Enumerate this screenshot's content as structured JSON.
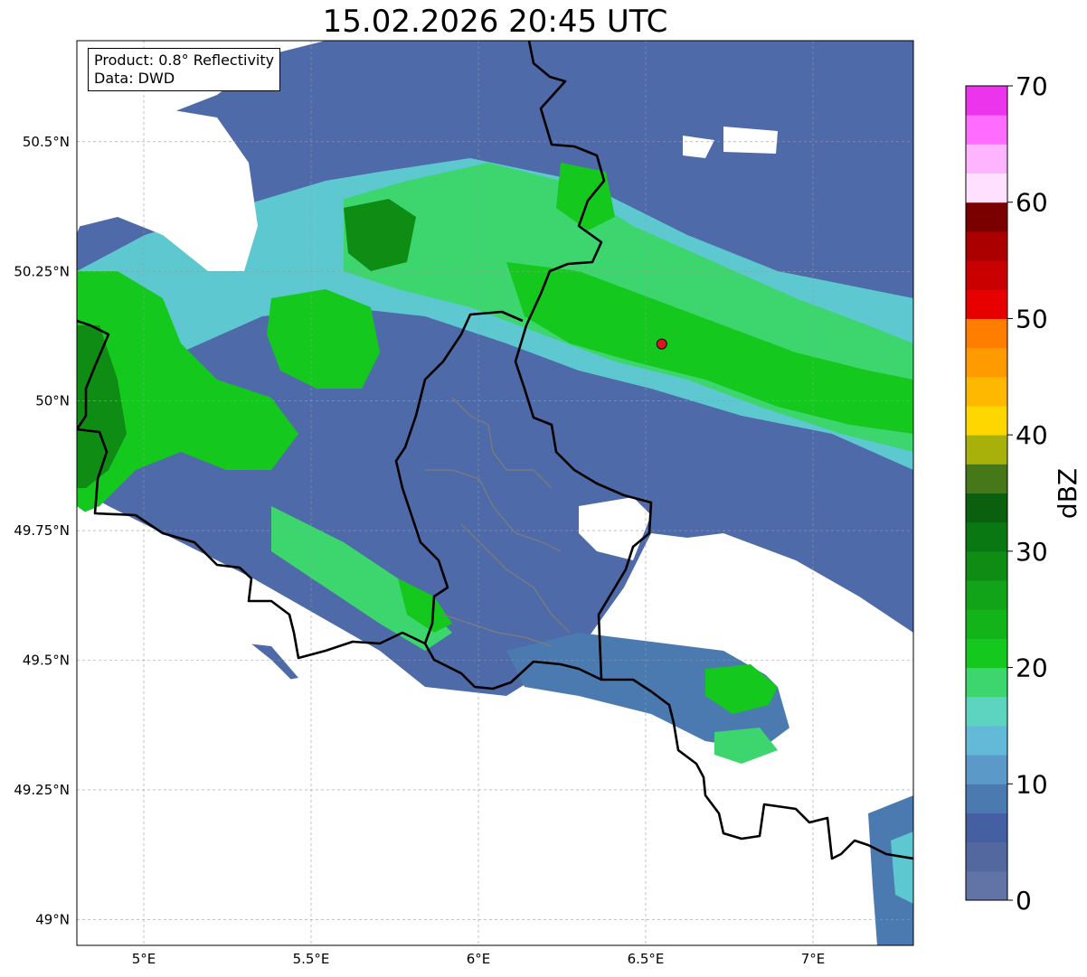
{
  "title": "15.02.2026 20:45 UTC",
  "infobox": {
    "product": "Product: 0.8° Reflectivity",
    "source": "Data: DWD"
  },
  "map": {
    "lon_range": [
      4.8,
      7.3
    ],
    "lat_range": [
      48.95,
      50.695
    ],
    "lon_ticks": [
      {
        "value": 5.0,
        "label": "5°E"
      },
      {
        "value": 5.5,
        "label": "5.5°E"
      },
      {
        "value": 6.0,
        "label": "6°E"
      },
      {
        "value": 6.5,
        "label": "6.5°E"
      },
      {
        "value": 7.0,
        "label": "7°E"
      }
    ],
    "lat_ticks": [
      {
        "value": 50.5,
        "label": "50.5°N"
      },
      {
        "value": 50.25,
        "label": "50.25°N"
      },
      {
        "value": 50.0,
        "label": "50°N"
      },
      {
        "value": 49.75,
        "label": "49.75°N"
      },
      {
        "value": 49.5,
        "label": "49.5°N"
      },
      {
        "value": 49.25,
        "label": "49.25°N"
      },
      {
        "value": 49.0,
        "label": "49°N"
      }
    ],
    "gridlines": true,
    "radar_site": {
      "lon": 6.548,
      "lat": 50.11,
      "color": "#e0141e"
    }
  },
  "colorbar": {
    "label": "dBZ",
    "min": 0,
    "max": 70,
    "step": 2.5,
    "ticks": [
      {
        "value": 0,
        "label": "0"
      },
      {
        "value": 10,
        "label": "10"
      },
      {
        "value": 20,
        "label": "20"
      },
      {
        "value": 30,
        "label": "30"
      },
      {
        "value": 40,
        "label": "40"
      },
      {
        "value": 50,
        "label": "50"
      },
      {
        "value": 60,
        "label": "60"
      },
      {
        "value": 70,
        "label": "70"
      }
    ],
    "colors": [
      "#6273a6",
      "#52689e",
      "#4460a2",
      "#4a7ab0",
      "#5a99c8",
      "#63bad8",
      "#5cd4c0",
      "#3dd66e",
      "#14c81e",
      "#12b41a",
      "#12a418",
      "#0e8c14",
      "#0a7812",
      "#0a600e",
      "#46781a",
      "#a8b00a",
      "#ffd700",
      "#ffb800",
      "#ff9a00",
      "#ff7e00",
      "#e60000",
      "#c80000",
      "#aa0000",
      "#7a0000",
      "#ffe0ff",
      "#ffb4ff",
      "#ff6cff",
      "#ec34ec"
    ]
  }
}
